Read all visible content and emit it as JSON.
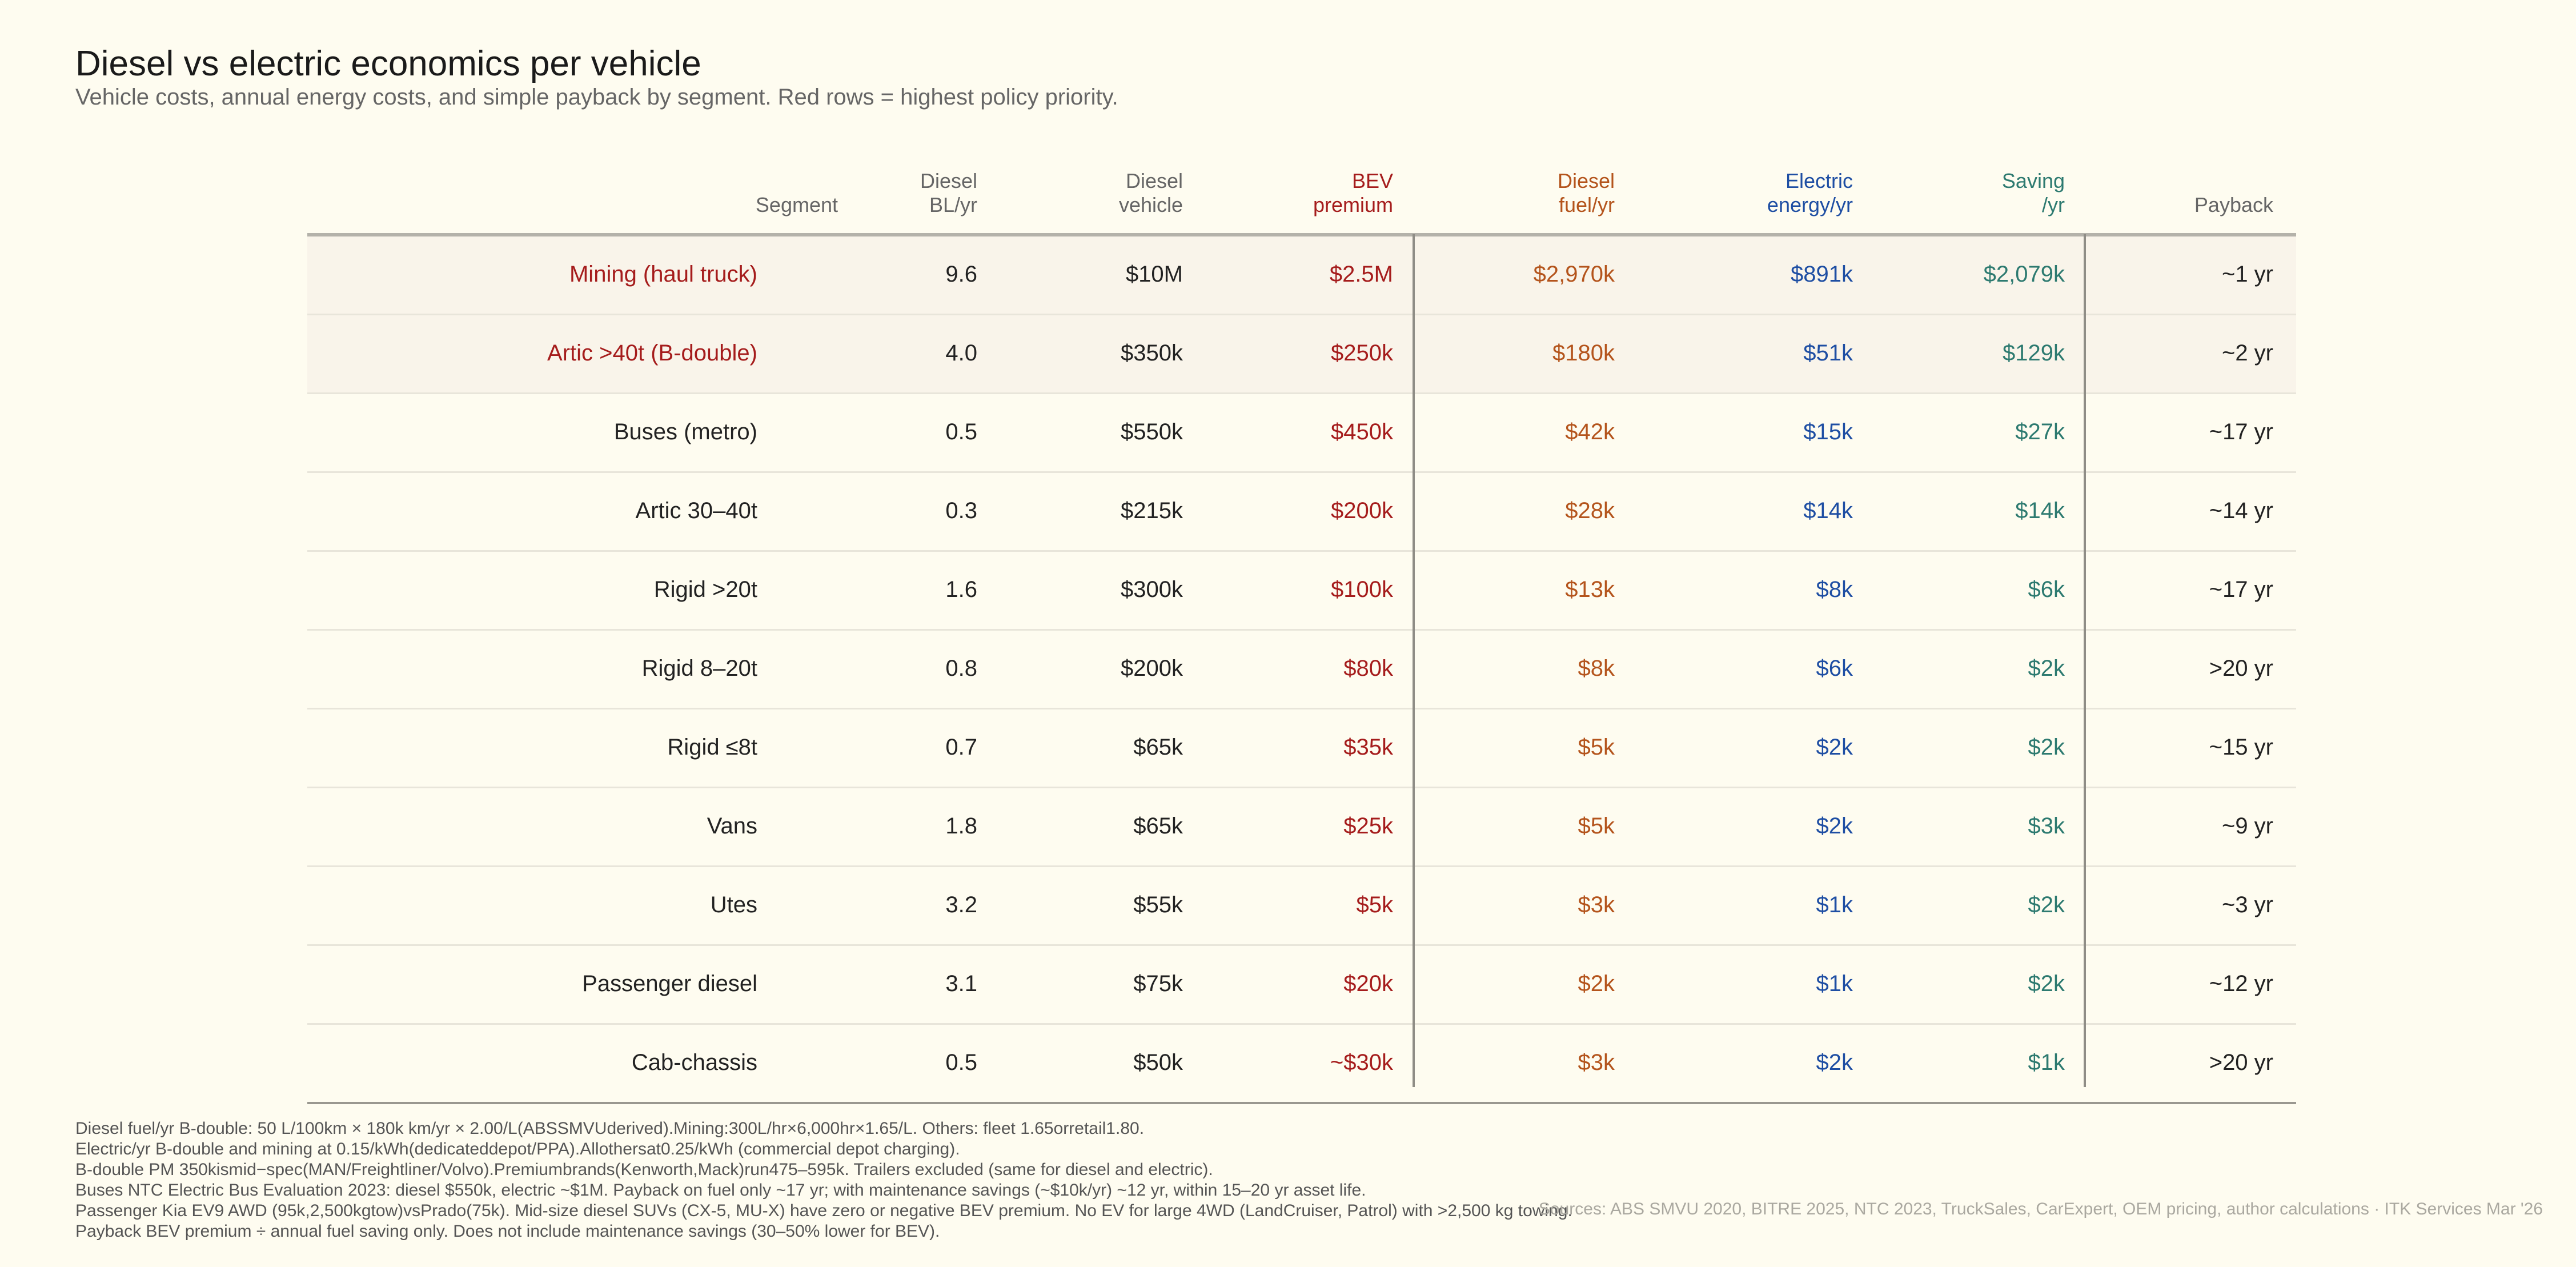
{
  "title": "Diesel vs electric economics per vehicle",
  "subtitle": "Vehicle costs, annual energy costs, and simple payback by segment. Red rows = highest policy priority.",
  "colors": {
    "priority": "#a51c1c",
    "diesel_fuel": "#b4541c",
    "electric": "#1e4ea3",
    "saving": "#2d7a70",
    "priority_row_bg": "#f9f4ea"
  },
  "headers": {
    "segment": "Segment",
    "bl": [
      "Diesel",
      "BL/yr"
    ],
    "vehicle": [
      "Diesel",
      "vehicle"
    ],
    "bev": [
      "BEV",
      "premium"
    ],
    "fuel": [
      "Diesel",
      "fuel/yr"
    ],
    "elec": [
      "Electric",
      "energy/yr"
    ],
    "saving": [
      "Saving",
      "/yr"
    ],
    "payback": "Payback"
  },
  "rows": [
    {
      "segment": "Mining (haul truck)",
      "bl": "9.6",
      "vehicle": "$10M",
      "bev": "$2.5M",
      "fuel": "$2,970k",
      "elec": "$891k",
      "saving": "$2,079k",
      "payback": "~1 yr",
      "priority": true
    },
    {
      "segment": "Artic >40t (B-double)",
      "bl": "4.0",
      "vehicle": "$350k",
      "bev": "$250k",
      "fuel": "$180k",
      "elec": "$51k",
      "saving": "$129k",
      "payback": "~2 yr",
      "priority": true
    },
    {
      "segment": "Buses (metro)",
      "bl": "0.5",
      "vehicle": "$550k",
      "bev": "$450k",
      "fuel": "$42k",
      "elec": "$15k",
      "saving": "$27k",
      "payback": "~17 yr"
    },
    {
      "segment": "Artic 30–40t",
      "bl": "0.3",
      "vehicle": "$215k",
      "bev": "$200k",
      "fuel": "$28k",
      "elec": "$14k",
      "saving": "$14k",
      "payback": "~14 yr"
    },
    {
      "segment": "Rigid >20t",
      "bl": "1.6",
      "vehicle": "$300k",
      "bev": "$100k",
      "fuel": "$13k",
      "elec": "$8k",
      "saving": "$6k",
      "payback": "~17 yr"
    },
    {
      "segment": "Rigid 8–20t",
      "bl": "0.8",
      "vehicle": "$200k",
      "bev": "$80k",
      "fuel": "$8k",
      "elec": "$6k",
      "saving": "$2k",
      "payback": ">20 yr"
    },
    {
      "segment": "Rigid ≤8t",
      "bl": "0.7",
      "vehicle": "$65k",
      "bev": "$35k",
      "fuel": "$5k",
      "elec": "$2k",
      "saving": "$2k",
      "payback": "~15 yr"
    },
    {
      "segment": "Vans",
      "bl": "1.8",
      "vehicle": "$65k",
      "bev": "$25k",
      "fuel": "$5k",
      "elec": "$2k",
      "saving": "$3k",
      "payback": "~9 yr"
    },
    {
      "segment": "Utes",
      "bl": "3.2",
      "vehicle": "$55k",
      "bev": "$5k",
      "fuel": "$3k",
      "elec": "$1k",
      "saving": "$2k",
      "payback": "~3 yr"
    },
    {
      "segment": "Passenger diesel",
      "bl": "3.1",
      "vehicle": "$75k",
      "bev": "$20k",
      "fuel": "$2k",
      "elec": "$1k",
      "saving": "$2k",
      "payback": "~12 yr"
    },
    {
      "segment": "Cab-chassis",
      "bl": "0.5",
      "vehicle": "$50k",
      "bev": "~$30k",
      "fuel": "$3k",
      "elec": "$2k",
      "saving": "$1k",
      "payback": ">20 yr"
    }
  ],
  "notes": [
    "Diesel fuel/yr  B-double: 50 L/100km × 180k km/yr × 2.00/L(ABSSMVUderived).Mining:300L/hr×6,000hr×1.65/L. Others: fleet 1.65orretail1.80.",
    "Electric/yr  B-double and mining at 0.15/kWh(dedicateddepot/PPA).Allothersat0.25/kWh (commercial depot charging).",
    "B-double PM  350kismid−spec(MAN/Freightliner/Volvo).Premiumbrands(Kenworth,Mack)run475–595k. Trailers excluded (same for diesel and electric).",
    "Buses  NTC Electric Bus Evaluation 2023: diesel $550k, electric ~$1M. Payback on fuel only ~17 yr; with maintenance savings (~$10k/yr) ~12 yr, within 15–20 yr asset life.",
    "Passenger  Kia EV9 AWD (95k,2,500kgtow)vsPrado(75k). Mid-size diesel SUVs (CX-5, MU-X) have zero or negative BEV premium. No EV for large 4WD (LandCruiser, Patrol) with >2,500 kg towing.",
    "Payback  BEV premium ÷ annual fuel saving only. Does not include maintenance savings (30–50% lower for BEV)."
  ],
  "sources": "Sources: ABS SMVU 2020, BITRE 2025, NTC 2023, TruckSales, CarExpert, OEM pricing, author calculations  ·  ITK Services Mar '26"
}
